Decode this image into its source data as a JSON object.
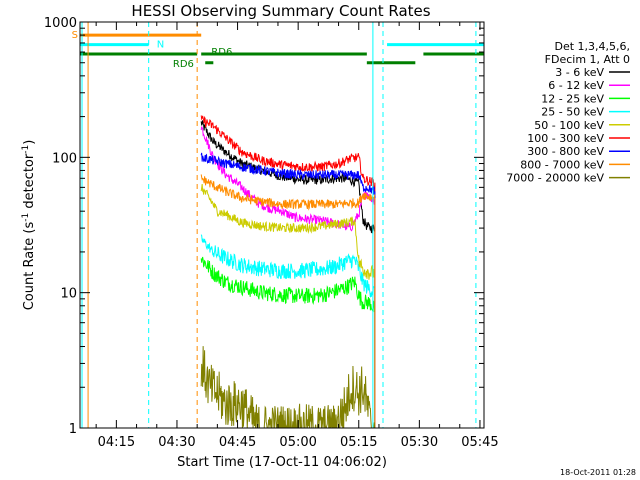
{
  "chart_data": {
    "type": "line",
    "title": "HESSI Observing Summary Count Rates",
    "xlabel": "Start Time (17-Oct-11 04:06:02)",
    "ylabel_main": "Count Rate (s",
    "ylabel_sup1": "-1",
    "ylabel_mid": " detector",
    "ylabel_sup2": "-1",
    "ylabel_end": ")",
    "y_scale": "log",
    "ylim": [
      1,
      1000
    ],
    "xlim_minutes": [
      0,
      100
    ],
    "x_ticks": [
      {
        "label": "04:15",
        "t": 9
      },
      {
        "label": "04:30",
        "t": 24
      },
      {
        "label": "04:45",
        "t": 39
      },
      {
        "label": "05:00",
        "t": 54
      },
      {
        "label": "05:15",
        "t": 69
      },
      {
        "label": "05:30",
        "t": 84
      },
      {
        "label": "05:45",
        "t": 99
      }
    ],
    "y_ticks": [
      {
        "label": "1",
        "v": 1
      },
      {
        "label": "10",
        "v": 10
      },
      {
        "label": "100",
        "v": 100
      },
      {
        "label": "1000",
        "v": 1000
      }
    ],
    "grid": false,
    "legend_title": [
      "Det 1,3,4,5,6,",
      "FDecim 1, Att 0"
    ],
    "legend_position": "right",
    "series": [
      {
        "name": "3 - 6 keV",
        "color": "#000000",
        "t": [
          30,
          33,
          36,
          40,
          45,
          50,
          55,
          60,
          63,
          65,
          67,
          69,
          70,
          71,
          72,
          73
        ],
        "values": [
          180,
          130,
          110,
          90,
          80,
          72,
          68,
          68,
          70,
          70,
          68,
          64,
          35,
          31,
          30,
          30
        ]
      },
      {
        "name": "6 - 12 keV",
        "color": "#ff00ff",
        "t": [
          30,
          33,
          36,
          40,
          44,
          47,
          50,
          53,
          56,
          60,
          64,
          67,
          69,
          70,
          71,
          72,
          73
        ],
        "values": [
          170,
          100,
          75,
          60,
          46,
          42,
          40,
          36,
          35,
          34,
          32,
          30,
          38,
          50,
          55,
          50,
          48
        ]
      },
      {
        "name": "12 - 25 keV",
        "color": "#00ff00",
        "t": [
          30,
          33,
          36,
          40,
          45,
          50,
          55,
          60,
          63,
          66,
          68,
          69,
          70,
          71,
          72,
          73
        ],
        "values": [
          18,
          14,
          12,
          11,
          10,
          9.6,
          9.4,
          9.6,
          10.2,
          11,
          12,
          9.5,
          8.5,
          8.5,
          8.3,
          7.5
        ]
      },
      {
        "name": "25 - 50 keV",
        "color": "#00ffff",
        "t": [
          30,
          33,
          36,
          40,
          45,
          50,
          55,
          60,
          63,
          66,
          68,
          69,
          70,
          71,
          72,
          73
        ],
        "values": [
          25,
          20,
          18,
          16,
          15,
          14.5,
          14.5,
          15,
          15.5,
          17,
          17.5,
          15,
          12,
          11,
          10.5,
          10
        ]
      },
      {
        "name": "50 - 100 keV",
        "color": "#cccc00",
        "t": [
          30,
          32,
          34,
          36,
          40,
          45,
          50,
          55,
          60,
          63,
          66,
          68,
          69,
          70,
          71,
          72,
          73
        ],
        "values": [
          60,
          50,
          40,
          38,
          33,
          31,
          30,
          30,
          31,
          32,
          33,
          34,
          17,
          15,
          14.5,
          14,
          14
        ]
      },
      {
        "name": "100 - 300 keV",
        "color": "#ff0000",
        "t": [
          30,
          33,
          36,
          40,
          45,
          50,
          55,
          60,
          64,
          67,
          69,
          70,
          71,
          72,
          73
        ],
        "values": [
          190,
          170,
          140,
          110,
          95,
          88,
          85,
          85,
          90,
          98,
          100,
          70,
          68,
          66,
          65
        ]
      },
      {
        "name": "300 - 800 keV",
        "color": "#0000ff",
        "t": [
          30,
          33,
          36,
          40,
          45,
          50,
          55,
          60,
          64,
          67,
          69,
          70,
          71,
          72,
          73
        ],
        "values": [
          100,
          95,
          90,
          85,
          80,
          76,
          74,
          74,
          74,
          74,
          74,
          60,
          60,
          58,
          56
        ]
      },
      {
        "name": "800 - 7000 keV",
        "color": "#ff8c00",
        "t": [
          30,
          33,
          36,
          40,
          45,
          50,
          55,
          60,
          64,
          67,
          69,
          70,
          71,
          72,
          73
        ],
        "values": [
          70,
          62,
          56,
          50,
          47,
          45,
          45,
          45,
          45,
          46,
          46,
          53,
          52,
          51,
          50
        ]
      },
      {
        "name": "7000 - 20000 keV",
        "color": "#808000",
        "t": [
          30,
          32,
          34,
          36,
          40,
          44,
          48,
          52,
          56,
          60,
          63,
          66,
          67,
          68,
          69,
          70,
          71,
          72,
          73
        ],
        "values": [
          3,
          2,
          1.8,
          1.5,
          1.5,
          1,
          1,
          1,
          1,
          1,
          1,
          1.5,
          2,
          2,
          1.8,
          2,
          1.5,
          1,
          1
        ]
      }
    ],
    "annotations": [
      {
        "label": "S",
        "color": "#ff8c00"
      },
      {
        "label": "N",
        "color": "#00ffff"
      },
      {
        "label": "RD6",
        "color": "#007f00"
      },
      {
        "label": "RD6",
        "color": "#007f00"
      }
    ],
    "flag_bars": [
      {
        "color": "#ff8c00",
        "value": 800,
        "t0": 0,
        "t1": 30
      },
      {
        "color": "#00ffff",
        "value": 680,
        "t0": 0,
        "t1": 17
      },
      {
        "color": "#00ffff",
        "value": 680,
        "t0": 76,
        "t1": 100
      },
      {
        "color": "#007f00",
        "value": 580,
        "t0": 0,
        "t1": 29
      },
      {
        "color": "#007f00",
        "value": 580,
        "t0": 30,
        "t1": 71
      },
      {
        "color": "#007f00",
        "value": 580,
        "t0": 85,
        "t1": 100
      },
      {
        "color": "#007f00",
        "value": 500,
        "t0": 31,
        "t1": 33
      },
      {
        "color": "#007f00",
        "value": 500,
        "t0": 71,
        "t1": 83
      }
    ],
    "event_lines": [
      {
        "t": 2,
        "color": "#ff8c00",
        "style": "solid"
      },
      {
        "t": 0.5,
        "color": "#00ffff",
        "style": "solid"
      },
      {
        "t": 17,
        "color": "#00ffff",
        "style": "dashed"
      },
      {
        "t": 29,
        "color": "#ff8c00",
        "style": "dashed"
      },
      {
        "t": 72.5,
        "color": "#00ffff",
        "style": "solid"
      },
      {
        "t": 75,
        "color": "#00ffff",
        "style": "dashed"
      },
      {
        "t": 98,
        "color": "#00ffff",
        "style": "dashed"
      }
    ]
  },
  "timestamp": "18-Oct-2011 01:28"
}
